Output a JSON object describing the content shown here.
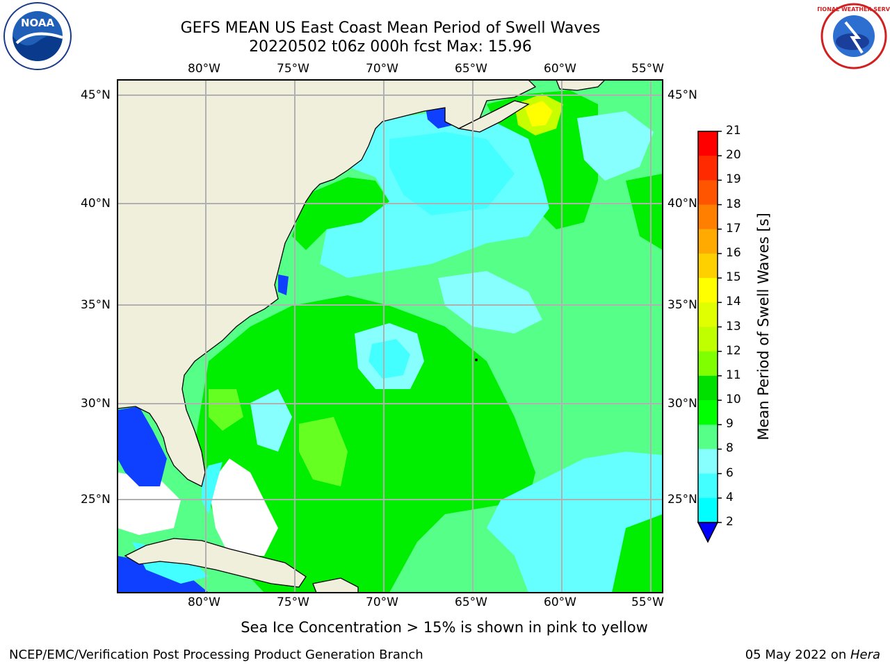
{
  "title_line1": "GEFS MEAN US East Coast Mean Period of Swell Waves",
  "title_line2": "20220502 t06z 000h fcst   Max: 15.96",
  "logos": {
    "left": "NOAA",
    "right": "NATIONAL WEATHER SERVICE"
  },
  "lon_labels": [
    "80°W",
    "75°W",
    "70°W",
    "65°W",
    "60°W",
    "55°W"
  ],
  "lat_labels": [
    "45°N",
    "40°N",
    "35°N",
    "30°N",
    "25°N"
  ],
  "colorbar": {
    "label": "Mean Period of Swell Waves [s]",
    "ticks": [
      "21",
      "20",
      "19",
      "18",
      "17",
      "16",
      "15",
      "14",
      "13",
      "12",
      "11",
      "10",
      "9",
      "8",
      "6",
      "4",
      "2"
    ],
    "colors": [
      "#ff0000",
      "#ff2a00",
      "#ff5500",
      "#ff8000",
      "#ffaa00",
      "#ffd000",
      "#ffff00",
      "#e0ff00",
      "#c0ff00",
      "#80ff00",
      "#00e000",
      "#00ff00",
      "#55ff88",
      "#88ffff",
      "#44ffff",
      "#00ffff",
      "#0080ff"
    ]
  },
  "footer_note": "Sea Ice Concentration > 15% is shown in pink to yellow",
  "footer_left": "NCEP/EMC/Verification Post Processing Product Generation Branch",
  "footer_right_date": "05 May 2022 on ",
  "footer_right_host": "Hera"
}
